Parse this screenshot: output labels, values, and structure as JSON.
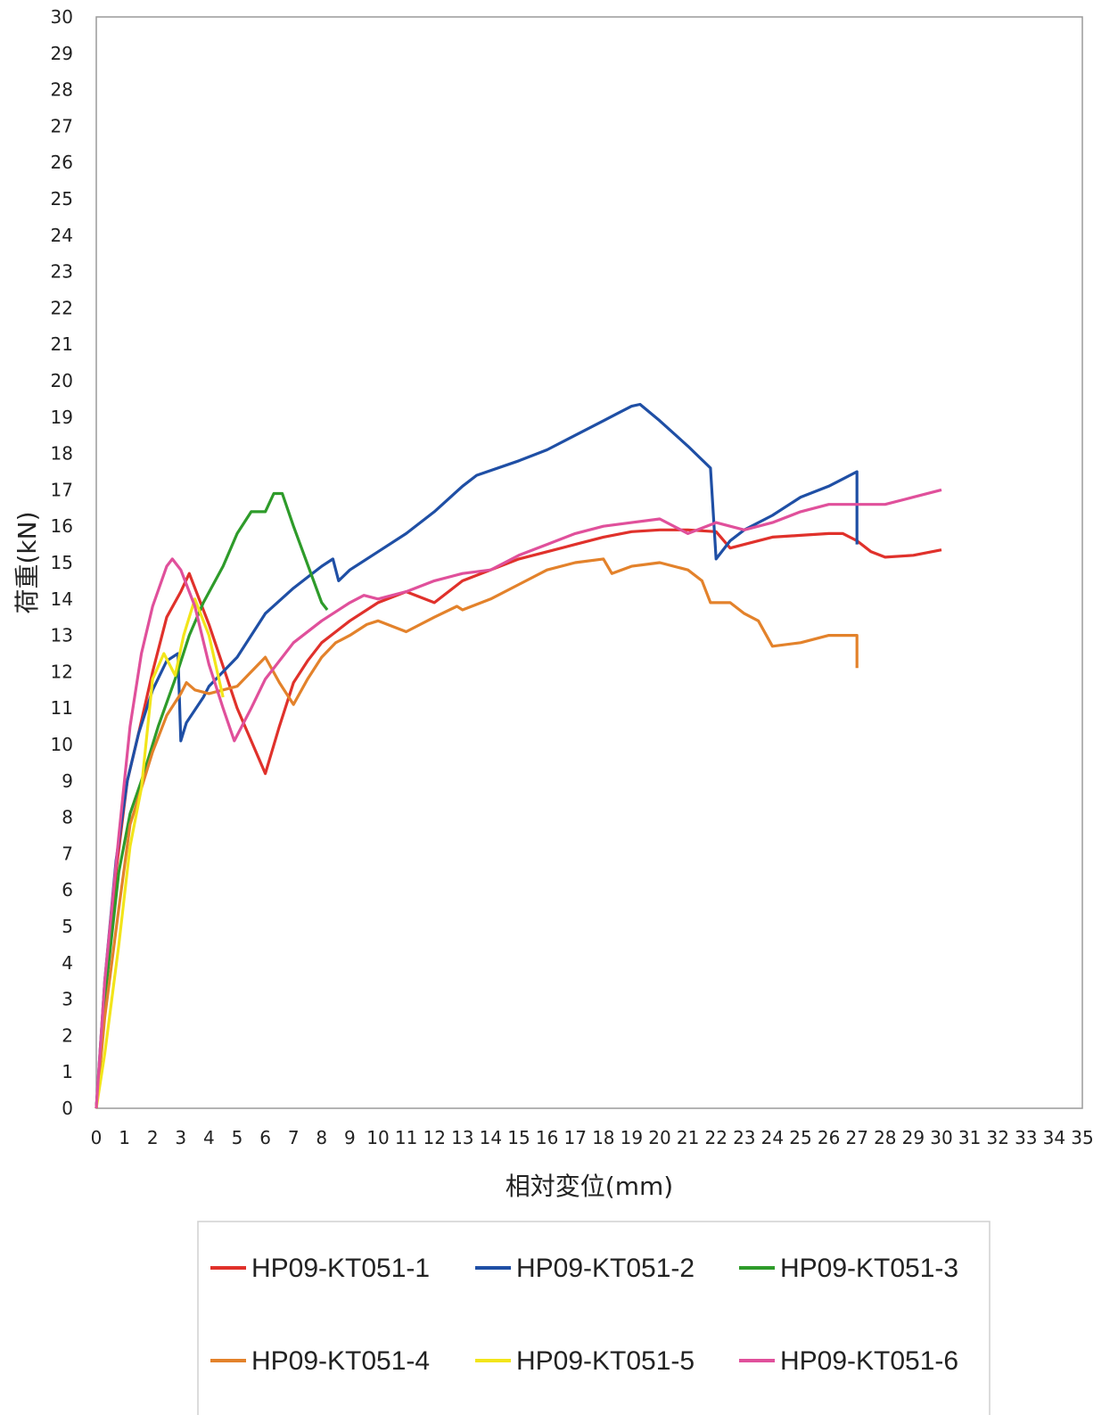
{
  "chart_data": {
    "type": "line",
    "title": "",
    "xlabel": "相対変位(mm)",
    "ylabel": "荷重(kN)",
    "xlim": [
      0,
      35
    ],
    "ylim": [
      0,
      30
    ],
    "xticks": [
      "0",
      "1",
      "2",
      "3",
      "4",
      "5",
      "6",
      "7",
      "8",
      "9",
      "10",
      "11",
      "12",
      "13",
      "14",
      "15",
      "16",
      "17",
      "18",
      "19",
      "20",
      "21",
      "22",
      "23",
      "24",
      "25",
      "26",
      "27",
      "28",
      "29",
      "30",
      "31",
      "32",
      "33",
      "34",
      "35"
    ],
    "yticks": [
      "0",
      "1",
      "2",
      "3",
      "4",
      "5",
      "6",
      "7",
      "8",
      "9",
      "10",
      "11",
      "12",
      "13",
      "14",
      "15",
      "16",
      "17",
      "18",
      "19",
      "20",
      "21",
      "22",
      "23",
      "24",
      "25",
      "26",
      "27",
      "28",
      "29",
      "30"
    ],
    "grid": false,
    "legend_position": "bottom",
    "series": [
      {
        "name": "HP09-KT051-1",
        "color": "#e0312b",
        "points": [
          [
            0,
            0
          ],
          [
            0.3,
            3
          ],
          [
            0.7,
            6.5
          ],
          [
            1.1,
            9
          ],
          [
            1.5,
            10.3
          ],
          [
            2,
            12
          ],
          [
            2.5,
            13.5
          ],
          [
            3,
            14.2
          ],
          [
            3.3,
            14.7
          ],
          [
            4,
            13.3
          ],
          [
            5,
            11
          ],
          [
            6,
            9.2
          ],
          [
            6.5,
            10.5
          ],
          [
            7,
            11.7
          ],
          [
            7.5,
            12.3
          ],
          [
            8,
            12.8
          ],
          [
            9,
            13.4
          ],
          [
            10,
            13.9
          ],
          [
            11,
            14.2
          ],
          [
            12,
            13.9
          ],
          [
            12.5,
            14.2
          ],
          [
            13,
            14.5
          ],
          [
            15,
            15.1
          ],
          [
            16,
            15.3
          ],
          [
            17,
            15.5
          ],
          [
            18,
            15.7
          ],
          [
            19,
            15.85
          ],
          [
            20,
            15.9
          ],
          [
            21,
            15.9
          ],
          [
            22,
            15.85
          ],
          [
            22.5,
            15.4
          ],
          [
            23,
            15.5
          ],
          [
            24,
            15.7
          ],
          [
            25,
            15.75
          ],
          [
            26,
            15.8
          ],
          [
            26.5,
            15.8
          ],
          [
            27,
            15.6
          ],
          [
            27.5,
            15.3
          ],
          [
            28,
            15.15
          ],
          [
            29,
            15.2
          ],
          [
            30,
            15.35
          ]
        ]
      },
      {
        "name": "HP09-KT051-2",
        "color": "#1f4fa5",
        "points": [
          [
            0,
            0
          ],
          [
            0.3,
            3.5
          ],
          [
            0.7,
            6.8
          ],
          [
            1.1,
            9
          ],
          [
            1.5,
            10.3
          ],
          [
            2,
            11.5
          ],
          [
            2.5,
            12.3
          ],
          [
            2.9,
            12.5
          ],
          [
            3,
            10.1
          ],
          [
            3.2,
            10.6
          ],
          [
            3.8,
            11.3
          ],
          [
            4,
            11.6
          ],
          [
            5,
            12.4
          ],
          [
            6,
            13.6
          ],
          [
            7,
            14.3
          ],
          [
            8,
            14.9
          ],
          [
            8.4,
            15.1
          ],
          [
            8.6,
            14.5
          ],
          [
            9,
            14.8
          ],
          [
            10,
            15.3
          ],
          [
            11,
            15.8
          ],
          [
            12,
            16.4
          ],
          [
            13,
            17.1
          ],
          [
            13.5,
            17.4
          ],
          [
            15,
            17.8
          ],
          [
            16,
            18.1
          ],
          [
            17,
            18.5
          ],
          [
            18,
            18.9
          ],
          [
            18.5,
            19.1
          ],
          [
            19,
            19.3
          ],
          [
            19.3,
            19.35
          ],
          [
            20,
            18.9
          ],
          [
            21,
            18.2
          ],
          [
            21.8,
            17.6
          ],
          [
            22,
            15.1
          ],
          [
            22.5,
            15.6
          ],
          [
            23,
            15.9
          ],
          [
            24,
            16.3
          ],
          [
            25,
            16.8
          ],
          [
            26,
            17.1
          ],
          [
            26.5,
            17.3
          ],
          [
            27,
            17.5
          ],
          [
            27,
            15.5
          ]
        ]
      },
      {
        "name": "HP09-KT051-3",
        "color": "#2e9b2a",
        "points": [
          [
            0,
            0
          ],
          [
            0.3,
            3
          ],
          [
            0.8,
            6.5
          ],
          [
            1.2,
            8.1
          ],
          [
            1.6,
            9
          ],
          [
            2.2,
            10.5
          ],
          [
            2.8,
            11.8
          ],
          [
            3.3,
            13
          ],
          [
            3.8,
            13.9
          ],
          [
            4.5,
            14.9
          ],
          [
            5,
            15.8
          ],
          [
            5.5,
            16.4
          ],
          [
            6,
            16.4
          ],
          [
            6.3,
            16.9
          ],
          [
            6.6,
            16.9
          ],
          [
            7,
            16
          ],
          [
            8,
            13.9
          ],
          [
            8.2,
            13.7
          ]
        ]
      },
      {
        "name": "HP09-KT051-4",
        "color": "#e3822b",
        "points": [
          [
            0,
            0
          ],
          [
            0.3,
            2.5
          ],
          [
            0.8,
            5.5
          ],
          [
            1.2,
            7.8
          ],
          [
            1.6,
            8.8
          ],
          [
            2,
            9.8
          ],
          [
            2.5,
            10.8
          ],
          [
            3,
            11.4
          ],
          [
            3.2,
            11.7
          ],
          [
            3.5,
            11.5
          ],
          [
            4,
            11.4
          ],
          [
            4.5,
            11.5
          ],
          [
            5,
            11.6
          ],
          [
            5.5,
            12
          ],
          [
            6,
            12.4
          ],
          [
            6.5,
            11.7
          ],
          [
            7,
            11.1
          ],
          [
            7.5,
            11.8
          ],
          [
            8,
            12.4
          ],
          [
            8.5,
            12.8
          ],
          [
            9,
            13
          ],
          [
            9.6,
            13.3
          ],
          [
            10,
            13.4
          ],
          [
            11,
            13.1
          ],
          [
            12,
            13.5
          ],
          [
            12.8,
            13.8
          ],
          [
            13,
            13.7
          ],
          [
            14,
            14
          ],
          [
            15,
            14.4
          ],
          [
            16,
            14.8
          ],
          [
            17,
            15
          ],
          [
            18,
            15.1
          ],
          [
            18.3,
            14.7
          ],
          [
            19,
            14.9
          ],
          [
            20,
            15
          ],
          [
            21,
            14.8
          ],
          [
            21.5,
            14.5
          ],
          [
            21.8,
            13.9
          ],
          [
            22.5,
            13.9
          ],
          [
            23,
            13.6
          ],
          [
            23.5,
            13.4
          ],
          [
            24,
            12.7
          ],
          [
            25,
            12.8
          ],
          [
            26,
            13
          ],
          [
            27,
            13
          ],
          [
            27,
            12.1
          ]
        ]
      },
      {
        "name": "HP09-KT051-5",
        "color": "#f2e51a",
        "points": [
          [
            0,
            0
          ],
          [
            0.3,
            1.5
          ],
          [
            0.8,
            4.5
          ],
          [
            1.2,
            7.2
          ],
          [
            1.6,
            8.8
          ],
          [
            2,
            11.8
          ],
          [
            2.4,
            12.5
          ],
          [
            2.8,
            11.9
          ],
          [
            3.1,
            13
          ],
          [
            3.5,
            14
          ],
          [
            4,
            13
          ],
          [
            4.5,
            11.3
          ]
        ]
      },
      {
        "name": "HP09-KT051-6",
        "color": "#e0509b",
        "points": [
          [
            0,
            0
          ],
          [
            0.3,
            3.5
          ],
          [
            0.8,
            7.5
          ],
          [
            1.2,
            10.5
          ],
          [
            1.6,
            12.5
          ],
          [
            2,
            13.8
          ],
          [
            2.5,
            14.9
          ],
          [
            2.7,
            15.1
          ],
          [
            3,
            14.8
          ],
          [
            3.5,
            13.8
          ],
          [
            4,
            12.2
          ],
          [
            4.5,
            11
          ],
          [
            4.9,
            10.1
          ],
          [
            5.5,
            11
          ],
          [
            6,
            11.8
          ],
          [
            7,
            12.8
          ],
          [
            8,
            13.4
          ],
          [
            9,
            13.9
          ],
          [
            9.5,
            14.1
          ],
          [
            10,
            14
          ],
          [
            11,
            14.2
          ],
          [
            12,
            14.5
          ],
          [
            13,
            14.7
          ],
          [
            14,
            14.8
          ],
          [
            15,
            15.2
          ],
          [
            16,
            15.5
          ],
          [
            17,
            15.8
          ],
          [
            18,
            16
          ],
          [
            19,
            16.1
          ],
          [
            20,
            16.2
          ],
          [
            21,
            15.8
          ],
          [
            22,
            16.1
          ],
          [
            23,
            15.9
          ],
          [
            24,
            16.1
          ],
          [
            25,
            16.4
          ],
          [
            26,
            16.6
          ],
          [
            27,
            16.6
          ],
          [
            28,
            16.6
          ],
          [
            29,
            16.8
          ],
          [
            30,
            17
          ]
        ]
      }
    ]
  }
}
